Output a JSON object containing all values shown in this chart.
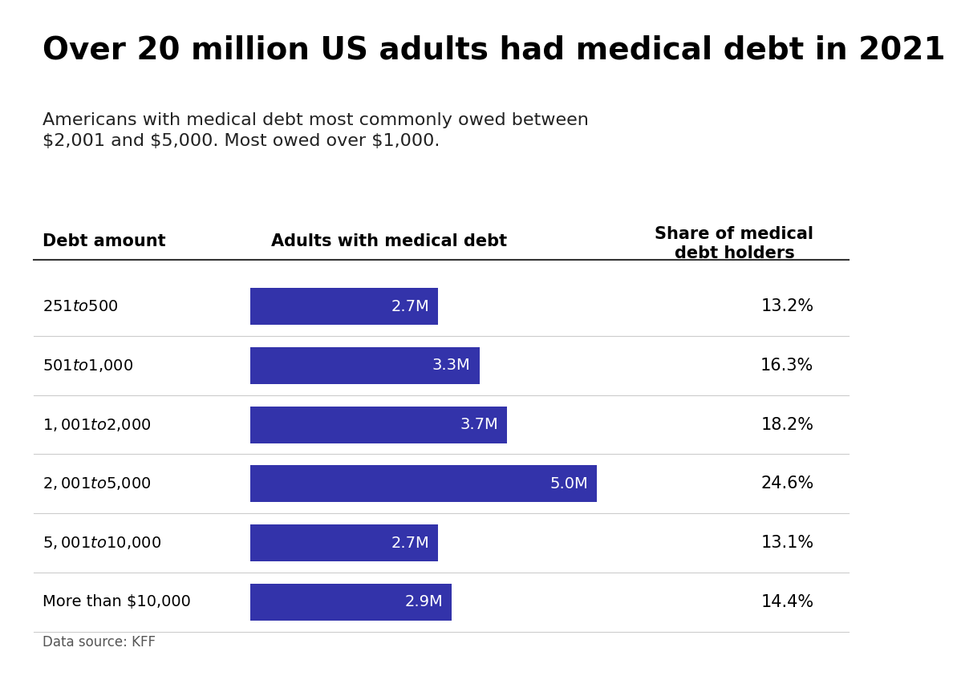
{
  "title": "Over 20 million US adults had medical debt in 2021",
  "subtitle": "Americans with medical debt most commonly owed between\n$2,001 and $5,000. Most owed over $1,000.",
  "col1_header": "Debt amount",
  "col2_header": "Adults with medical debt",
  "col3_header": "Share of medical\ndebt holders",
  "categories": [
    "$251 to $500",
    "$501 to $1,000",
    "$1,001 to $2,000",
    "$2,001 to $5,000",
    "$5,001 to $10,000",
    "More than $10,000"
  ],
  "values": [
    2.7,
    3.3,
    3.7,
    5.0,
    2.7,
    2.9
  ],
  "labels": [
    "2.7M",
    "3.3M",
    "3.7M",
    "5.0M",
    "2.7M",
    "2.9M"
  ],
  "shares": [
    "13.2%",
    "16.3%",
    "18.2%",
    "24.6%",
    "13.1%",
    "14.4%"
  ],
  "bar_color": "#3333aa",
  "max_value": 6.0,
  "source": "Data source: KFF",
  "background_color": "#ffffff",
  "title_fontsize": 28,
  "subtitle_fontsize": 16,
  "label_fontsize": 14,
  "header_fontsize": 15,
  "bar_label_fontsize": 14,
  "share_fontsize": 15
}
